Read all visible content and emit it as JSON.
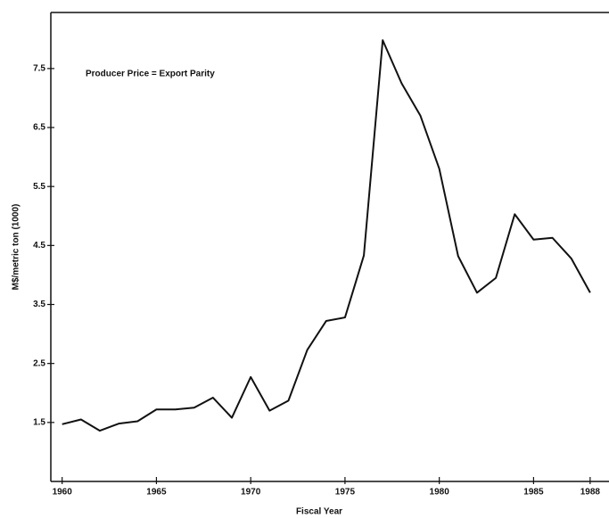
{
  "chart_data": {
    "type": "line",
    "annotation": "Producer Price = Export Parity",
    "xlabel": "Fiscal Year",
    "ylabel": "M$/metric ton (1000)",
    "x": [
      1960,
      1961,
      1962,
      1963,
      1964,
      1965,
      1966,
      1967,
      1968,
      1969,
      1970,
      1971,
      1972,
      1973,
      1974,
      1975,
      1976,
      1977,
      1978,
      1979,
      1980,
      1981,
      1982,
      1983,
      1984,
      1985,
      1986,
      1987,
      1988
    ],
    "series": [
      {
        "color": "#111111",
        "values": [
          1.47,
          1.55,
          1.36,
          1.48,
          1.52,
          1.72,
          1.72,
          1.75,
          1.92,
          1.58,
          2.27,
          1.7,
          1.87,
          2.73,
          3.22,
          3.28,
          4.33,
          7.98,
          7.25,
          6.7,
          5.8,
          4.32,
          3.7,
          3.95,
          5.03,
          4.6,
          4.63,
          4.28,
          3.7
        ]
      }
    ],
    "xlim": [
      1959.4,
      1989
    ],
    "xticks": [
      1960,
      1965,
      1970,
      1975,
      1980,
      1985,
      1988
    ],
    "ylim": [
      0.5,
      8.45
    ],
    "yticks": [
      1.5,
      2.5,
      3.5,
      4.5,
      5.5,
      6.5,
      7.5
    ],
    "grid": false
  }
}
